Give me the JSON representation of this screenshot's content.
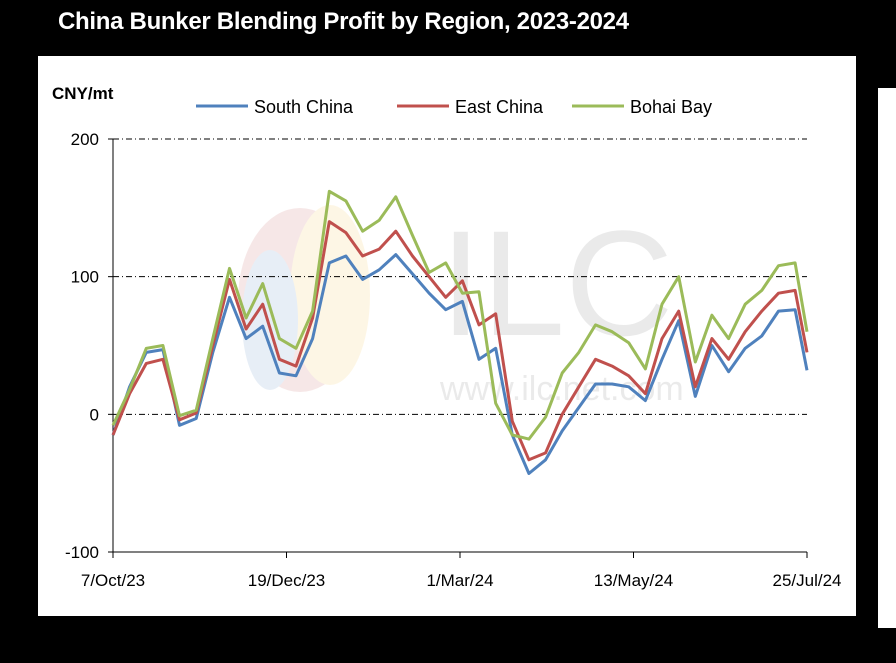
{
  "title": "China Bunker Blending Profit by Region, 2023-2024",
  "chart_data": {
    "type": "line",
    "title": "China Bunker Blending Profit by Region, 2023-2024",
    "ylabel": "CNY/mt",
    "xlabel": "",
    "ylim": [
      -100,
      200
    ],
    "yticks": [
      -100,
      0,
      100,
      200
    ],
    "xlim": [
      "2023-10-07",
      "2024-07-25"
    ],
    "xticks": [
      "7/Oct/23",
      "19/Dec/23",
      "1/Mar/24",
      "13/May/24",
      "25/Jul/24"
    ],
    "grid": "horizontal dash-dot",
    "legend": "top",
    "x": [
      "2023-10-07",
      "2023-10-14",
      "2023-10-21",
      "2023-10-28",
      "2023-11-04",
      "2023-11-11",
      "2023-11-18",
      "2023-11-25",
      "2023-12-02",
      "2023-12-09",
      "2023-12-16",
      "2023-12-23",
      "2023-12-30",
      "2024-01-06",
      "2024-01-13",
      "2024-01-20",
      "2024-01-27",
      "2024-02-03",
      "2024-02-10",
      "2024-02-17",
      "2024-02-24",
      "2024-03-02",
      "2024-03-09",
      "2024-03-16",
      "2024-03-23",
      "2024-03-30",
      "2024-04-06",
      "2024-04-13",
      "2024-04-20",
      "2024-04-27",
      "2024-05-04",
      "2024-05-11",
      "2024-05-18",
      "2024-05-25",
      "2024-06-01",
      "2024-06-08",
      "2024-06-15",
      "2024-06-22",
      "2024-06-29",
      "2024-07-06",
      "2024-07-13",
      "2024-07-20",
      "2024-07-25"
    ],
    "series": [
      {
        "name": "South China",
        "color": "#4F81BD",
        "values": [
          -15,
          20,
          45,
          47,
          -8,
          -3,
          45,
          85,
          55,
          64,
          30,
          28,
          55,
          110,
          115,
          98,
          105,
          116,
          102,
          88,
          76,
          82,
          40,
          48,
          -15,
          -43,
          -33,
          -12,
          5,
          22,
          22,
          20,
          10,
          40,
          68,
          13,
          50,
          31,
          48,
          57,
          75,
          76,
          32
        ]
      },
      {
        "name": "East China",
        "color": "#C0504D",
        "values": [
          -15,
          15,
          37,
          40,
          -4,
          1,
          50,
          98,
          62,
          80,
          40,
          35,
          70,
          140,
          132,
          115,
          120,
          133,
          115,
          100,
          85,
          97,
          65,
          73,
          -5,
          -33,
          -28,
          0,
          20,
          40,
          35,
          28,
          15,
          55,
          75,
          20,
          55,
          40,
          60,
          75,
          88,
          90,
          45
        ]
      },
      {
        "name": "Bohai Bay",
        "color": "#9BBB59",
        "values": [
          -8,
          18,
          48,
          50,
          -1,
          3,
          55,
          106,
          70,
          95,
          55,
          48,
          75,
          162,
          155,
          133,
          141,
          158,
          130,
          103,
          110,
          88,
          89,
          8,
          -15,
          -18,
          -2,
          30,
          45,
          65,
          60,
          52,
          33,
          80,
          100,
          38,
          72,
          55,
          80,
          90,
          108,
          110,
          60
        ]
      }
    ]
  }
}
